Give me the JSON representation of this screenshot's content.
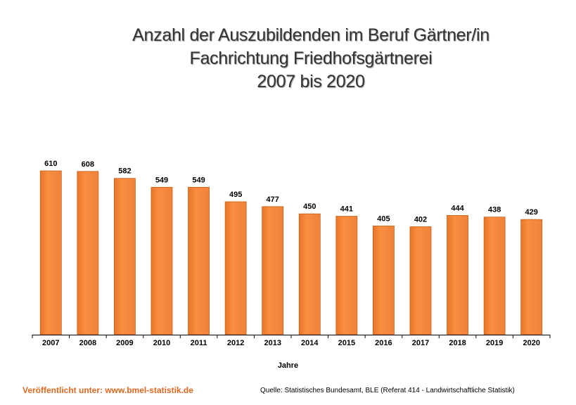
{
  "chart_data": {
    "type": "bar",
    "title": [
      "Anzahl der Auszubildenden im Beruf Gärtner/in",
      "Fachrichtung Friedhofsgärtnerei",
      "2007 bis 2020"
    ],
    "xlabel": "Jahre",
    "ylabel": "",
    "categories": [
      "2007",
      "2008",
      "2009",
      "2010",
      "2011",
      "2012",
      "2013",
      "2014",
      "2015",
      "2016",
      "2017",
      "2018",
      "2019",
      "2020"
    ],
    "values": [
      610,
      608,
      582,
      549,
      549,
      495,
      477,
      450,
      441,
      405,
      402,
      444,
      438,
      429
    ],
    "ylim": [
      0,
      610
    ],
    "grid": false,
    "legend": "none",
    "bar_color": "#f5883a",
    "bar_edge_color": "#c85f18"
  },
  "footer": {
    "published": "Veröffentlicht unter: www.bmel-statistik.de",
    "published_color": "#e06820",
    "source": "Quelle: Statistisches Bundesamt, BLE (Referat 414 - Landwirtschaftliche Statistik)"
  }
}
